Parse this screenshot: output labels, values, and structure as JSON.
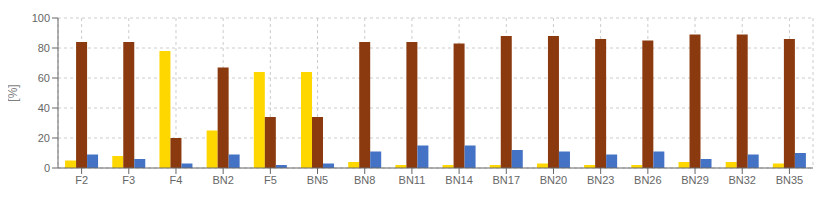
{
  "chart_data": {
    "type": "bar",
    "y_label": "[%]",
    "categories": [
      "F2",
      "F3",
      "F4",
      "BN2",
      "F5",
      "BN5",
      "BN8",
      "BN11",
      "BN14",
      "BN17",
      "BN20",
      "BN23",
      "BN26",
      "BN29",
      "BN32",
      "BN35"
    ],
    "series": [
      {
        "color": "#FFD700",
        "values": [
          5,
          8,
          78,
          25,
          64,
          64,
          4,
          2,
          2,
          2,
          3,
          2,
          2,
          4,
          4,
          3
        ]
      },
      {
        "color": "#8B3A0F",
        "values": [
          84,
          84,
          20,
          67,
          34,
          34,
          84,
          84,
          83,
          88,
          88,
          86,
          85,
          89,
          89,
          86
        ]
      },
      {
        "color": "#4472C4",
        "values": [
          9,
          6,
          3,
          9,
          2,
          3,
          11,
          15,
          15,
          12,
          11,
          9,
          11,
          6,
          9,
          10
        ]
      }
    ],
    "ylim": [
      0,
      100
    ],
    "yticks": [
      0,
      20,
      40,
      60,
      80,
      100
    ],
    "grid": true
  }
}
